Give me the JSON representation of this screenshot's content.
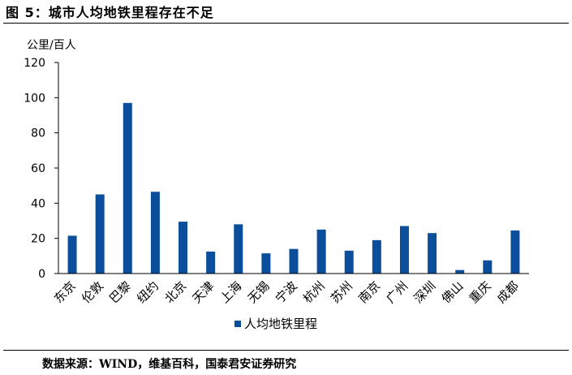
{
  "figure": {
    "title": "图 5：城市人均地铁里程存在不足",
    "source": "数据来源：WIND，维基百科，国泰君安证券研究"
  },
  "colors": {
    "bar": "#0b4f9c",
    "axis": "#000000"
  },
  "chart_data": {
    "type": "bar",
    "ylabel": "公里/百人",
    "xlabel": "",
    "ylim": [
      0,
      120
    ],
    "yticks": [
      0,
      20,
      40,
      60,
      80,
      100,
      120
    ],
    "categories": [
      "东京",
      "伦敦",
      "巴黎",
      "纽约",
      "北京",
      "天津",
      "上海",
      "无锡",
      "宁波",
      "杭州",
      "苏州",
      "南京",
      "广州",
      "深圳",
      "佛山",
      "重庆",
      "成都"
    ],
    "series": [
      {
        "name": "人均地铁里程",
        "values": [
          21.5,
          45,
          97,
          46.5,
          29.5,
          12.5,
          28,
          11.5,
          14,
          25,
          13,
          19,
          27,
          23,
          2,
          7.5,
          24.5
        ]
      }
    ],
    "legend": "bottom-center",
    "grid": false
  }
}
